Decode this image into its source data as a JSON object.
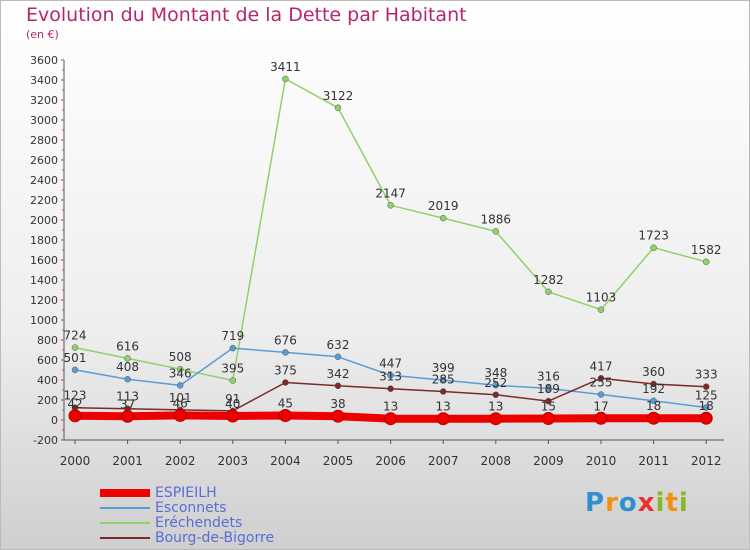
{
  "title": "Evolution du Montant de la Dette par Habitant",
  "unit": "(en €)",
  "logo": {
    "letters": [
      "P",
      "r",
      "o",
      "x",
      "i",
      "t",
      "i"
    ],
    "colors": [
      "#2e8fd1",
      "#f29111",
      "#2e8fd1",
      "#e8312f",
      "#84b928",
      "#f29111",
      "#84b928"
    ]
  },
  "chart_data": {
    "type": "line",
    "x": [
      "2000",
      "2001",
      "2002",
      "2003",
      "2004",
      "2005",
      "2006",
      "2007",
      "2008",
      "2009",
      "2010",
      "2011",
      "2012"
    ],
    "ylim": [
      -200,
      3600
    ],
    "yticks": [
      -200,
      0,
      200,
      400,
      600,
      800,
      1000,
      1200,
      1400,
      1600,
      1800,
      2000,
      2200,
      2400,
      2600,
      2800,
      3000,
      3200,
      3400,
      3600
    ],
    "grid": false,
    "legend_position": "bottom-left",
    "series": [
      {
        "name": "ESPIEILH",
        "color": "#ee0000",
        "values": [
          42,
          37,
          46,
          40,
          45,
          38,
          13,
          13,
          13,
          15,
          17,
          18,
          18
        ]
      },
      {
        "name": "Esconnets",
        "color": "#5b9bd5",
        "values": [
          501,
          408,
          346,
          719,
          676,
          632,
          447,
          399,
          348,
          316,
          255,
          192,
          125
        ]
      },
      {
        "name": "Eréchendets",
        "color": "#8fd16a",
        "values": [
          724,
          616,
          508,
          395,
          3411,
          3122,
          2147,
          2019,
          1886,
          1282,
          1103,
          1723,
          1582
        ]
      },
      {
        "name": "Bourg-de-Bigorre",
        "color": "#7a2a2a",
        "values": [
          123,
          113,
          101,
          91,
          375,
          342,
          313,
          285,
          252,
          189,
          417,
          360,
          333
        ]
      }
    ]
  }
}
